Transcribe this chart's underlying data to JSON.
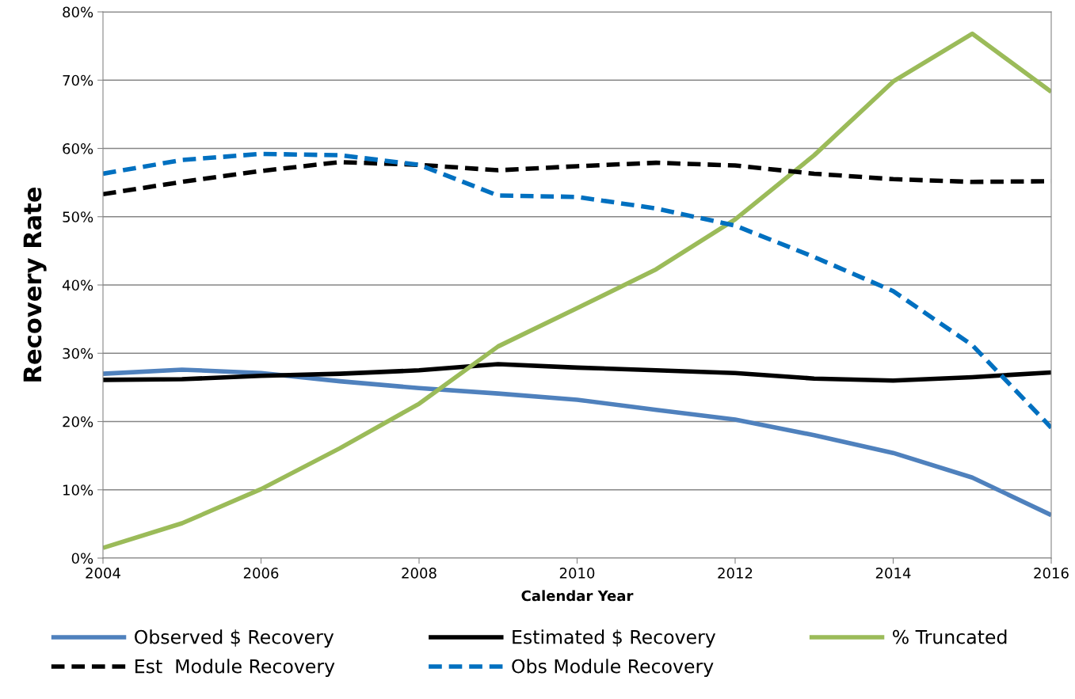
{
  "chart_data": {
    "type": "line",
    "xlabel": "Calendar Year",
    "ylabel": "Recovery Rate",
    "x": [
      2004,
      2005,
      2006,
      2007,
      2008,
      2009,
      2010,
      2011,
      2012,
      2013,
      2014,
      2015,
      2016
    ],
    "series": [
      {
        "name": "Observed $ Recovery",
        "color": "#4f81bd",
        "line_style": "solid",
        "values": [
          27.0,
          27.6,
          27.1,
          25.9,
          24.9,
          24.1,
          23.2,
          21.7,
          20.3,
          18.0,
          15.4,
          11.8,
          6.3
        ]
      },
      {
        "name": "Estimated $ Recovery",
        "color": "#000000",
        "line_style": "solid",
        "values": [
          26.1,
          26.2,
          26.7,
          27.0,
          27.5,
          28.4,
          27.9,
          27.5,
          27.1,
          26.3,
          26.0,
          26.5,
          27.2
        ]
      },
      {
        "name": "% Truncated",
        "color": "#9bbb59",
        "line_style": "solid",
        "values": [
          1.5,
          5.1,
          10.1,
          16.1,
          22.6,
          31.0,
          36.6,
          42.3,
          49.6,
          59.0,
          69.8,
          76.8,
          68.3
        ]
      },
      {
        "name": "Est  Module Recovery",
        "color": "#000000",
        "line_style": "dashed",
        "values": [
          53.3,
          55.1,
          56.7,
          58.0,
          57.6,
          56.8,
          57.4,
          57.9,
          57.5,
          56.3,
          55.5,
          55.1,
          55.2
        ]
      },
      {
        "name": "Obs Module Recovery",
        "color": "#0070c0",
        "line_style": "dashed",
        "values": [
          56.3,
          58.3,
          59.2,
          59.0,
          57.6,
          53.1,
          52.9,
          51.2,
          48.7,
          44.1,
          39.1,
          31.2,
          19.1
        ]
      }
    ],
    "xlim": [
      2004,
      2016
    ],
    "xticks": [
      2004,
      2006,
      2008,
      2010,
      2012,
      2014,
      2016
    ],
    "ylim": [
      0,
      80
    ],
    "yticks": [
      {
        "value": 0,
        "label": "0%"
      },
      {
        "value": 10,
        "label": "10%"
      },
      {
        "value": 20,
        "label": "20%"
      },
      {
        "value": 30,
        "label": "30%"
      },
      {
        "value": 40,
        "label": "40%"
      },
      {
        "value": 50,
        "label": "50%"
      },
      {
        "value": 60,
        "label": "60%"
      },
      {
        "value": 70,
        "label": "70%"
      },
      {
        "value": 80,
        "label": "80%"
      }
    ],
    "grid": "y",
    "legend": "bottom",
    "marker": "none"
  }
}
